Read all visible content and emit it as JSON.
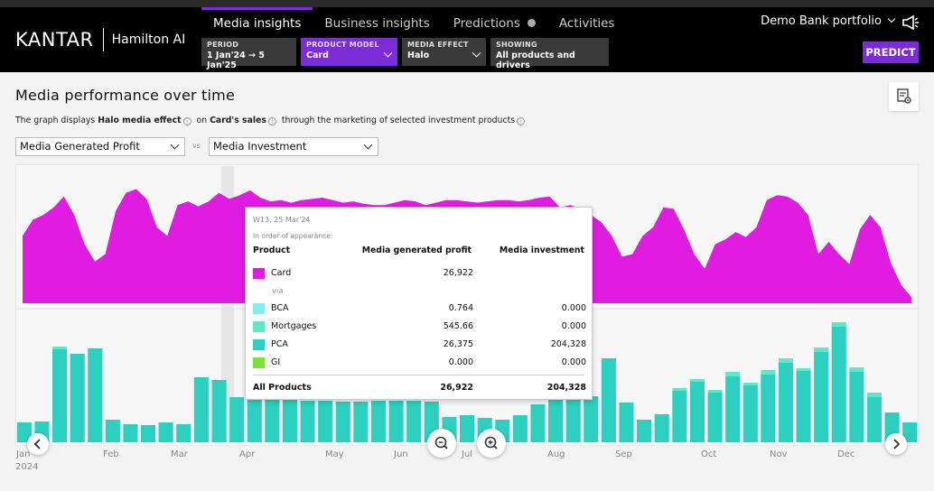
{
  "header": {
    "brand": "KANTAR",
    "product": "Hamilton AI",
    "tabs": [
      {
        "label": "Media insights",
        "active": true
      },
      {
        "label": "Business insights",
        "active": false
      },
      {
        "label": "Predictions",
        "active": false
      },
      {
        "label": "Activities",
        "active": false
      }
    ],
    "filters": {
      "period": {
        "label": "PERIOD",
        "value": "1 Jan'24 → 5 Jan'25"
      },
      "product_model": {
        "label": "PRODUCT MODEL",
        "value": "Card"
      },
      "media_effect": {
        "label": "MEDIA EFFECT",
        "value": "Halo"
      },
      "showing": {
        "label": "SHOWING",
        "value": "All products and drivers"
      }
    },
    "portfolio": "Demo Bank portfolio",
    "predict_label": "PREDICT",
    "accent_color": "#7b2cd6"
  },
  "main": {
    "title": "Media performance over time",
    "description": {
      "part1": "The graph displays",
      "bold1": "Halo media effect",
      "part2": "on",
      "bold2": "Card's sales",
      "part3": "through the marketing of selected investment products"
    },
    "metric_left": "Media Generated Profit",
    "vs": "vs",
    "metric_right": "Media Investment"
  },
  "chart_data": {
    "type": "area",
    "x_labels": [
      "Jan",
      "Feb",
      "Mar",
      "Apr",
      "May",
      "Jun",
      "Jul",
      "Aug",
      "Sep",
      "Oct",
      "Nov",
      "Dec"
    ],
    "year_label": "2024",
    "colors": {
      "profit": "#e01ce0",
      "investment": "#2ccfc0",
      "investment_light": "#5fe8c8"
    },
    "profit_series": [
      0.55,
      0.68,
      0.72,
      0.78,
      0.87,
      0.72,
      0.48,
      0.34,
      0.4,
      0.75,
      0.9,
      0.93,
      0.85,
      0.62,
      0.55,
      0.8,
      0.83,
      0.79,
      0.83,
      0.9,
      0.85,
      0.88,
      0.92,
      0.86,
      0.83,
      0.84,
      0.82,
      0.84,
      0.85,
      0.86,
      0.84,
      0.82,
      0.83,
      0.81,
      0.8,
      0.8,
      0.82,
      0.84,
      0.83,
      0.8,
      0.82,
      0.84,
      0.84,
      0.83,
      0.82,
      0.83,
      0.84,
      0.84,
      0.83,
      0.84,
      0.86,
      0.87,
      0.78,
      0.8,
      0.77,
      0.72,
      0.66,
      0.55,
      0.38,
      0.4,
      0.55,
      0.62,
      0.78,
      0.77,
      0.6,
      0.4,
      0.28,
      0.48,
      0.52,
      0.58,
      0.54,
      0.62,
      0.84,
      0.88,
      0.87,
      0.82,
      0.72,
      0.4,
      0.5,
      0.4,
      0.32,
      0.6,
      0.72,
      0.62,
      0.33,
      0.15,
      0.05
    ],
    "investment_bars": [
      22,
      23,
      103,
      98,
      104,
      25,
      20,
      19,
      22,
      20,
      72,
      69,
      50,
      48,
      49,
      47,
      46,
      46,
      45,
      45,
      46,
      46,
      46,
      45,
      28,
      30,
      27,
      25,
      30,
      42,
      55,
      53,
      51,
      93,
      44,
      25,
      31,
      57,
      67,
      55,
      73,
      63,
      75,
      88,
      79,
      100,
      128,
      78,
      50,
      33,
      22
    ],
    "investment_tops": [
      0,
      0,
      3,
      0,
      0,
      0,
      0,
      0,
      0,
      0,
      0,
      0,
      0,
      0,
      0,
      0,
      0,
      0,
      0,
      0,
      0,
      0,
      0,
      0,
      0,
      0,
      0,
      0,
      0,
      0,
      0,
      0,
      0,
      0,
      0,
      0,
      0,
      3,
      3,
      3,
      5,
      3,
      5,
      5,
      3,
      5,
      5,
      5,
      5,
      0,
      0
    ]
  },
  "tooltip": {
    "date": "W13, 25 Mar'24",
    "order_note": "In order of appearance:",
    "col_product": "Product",
    "col_profit": "Media generated profit",
    "col_investment": "Media investment",
    "via": "via",
    "rows": [
      {
        "name": "Card",
        "profit": "26,922",
        "investment": "",
        "color": "#e01ce0"
      },
      {
        "name": "BCA",
        "profit": "0.764",
        "investment": "0.000",
        "color": "#86ecef"
      },
      {
        "name": "Mortgages",
        "profit": "545.66",
        "investment": "0.000",
        "color": "#5fe8c8"
      },
      {
        "name": "PCA",
        "profit": "26,375",
        "investment": "204,328",
        "color": "#2ccfc0"
      },
      {
        "name": "GI",
        "profit": "0.000",
        "investment": "0.000",
        "color": "#7fe03a"
      }
    ],
    "total": {
      "name": "All Products",
      "profit": "26,922",
      "investment": "204,328"
    }
  }
}
